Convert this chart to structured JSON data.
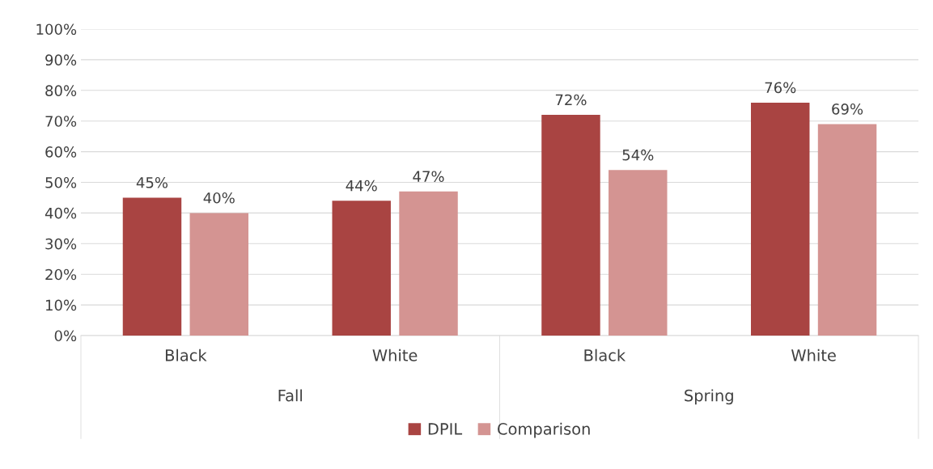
{
  "chart_data": {
    "type": "bar",
    "categories": [
      "Black",
      "White",
      "Black",
      "White"
    ],
    "series": [
      {
        "name": "DPIL",
        "color": "#a94442",
        "values": [
          45,
          44,
          72,
          76
        ],
        "value_labels": [
          "45%",
          "44%",
          "72%",
          "76%"
        ]
      },
      {
        "name": "Comparison",
        "color": "#d49492",
        "values": [
          40,
          47,
          54,
          69
        ],
        "value_labels": [
          "40%",
          "47%",
          "54%",
          "69%"
        ]
      }
    ],
    "annotations": [
      "Fall",
      "Spring"
    ],
    "ylim": [
      0,
      100
    ],
    "yticks": [
      {
        "value": 0,
        "label": "0%"
      },
      {
        "value": 10,
        "label": "10%"
      },
      {
        "value": 20,
        "label": "20%"
      },
      {
        "value": 30,
        "label": "30%"
      },
      {
        "value": 40,
        "label": "40%"
      },
      {
        "value": 50,
        "label": "50%"
      },
      {
        "value": 60,
        "label": "60%"
      },
      {
        "value": 70,
        "label": "70%"
      },
      {
        "value": 80,
        "label": "80%"
      },
      {
        "value": 90,
        "label": "90%"
      },
      {
        "value": 100,
        "label": "100%"
      }
    ],
    "grid": "y",
    "legend": "bottom"
  }
}
